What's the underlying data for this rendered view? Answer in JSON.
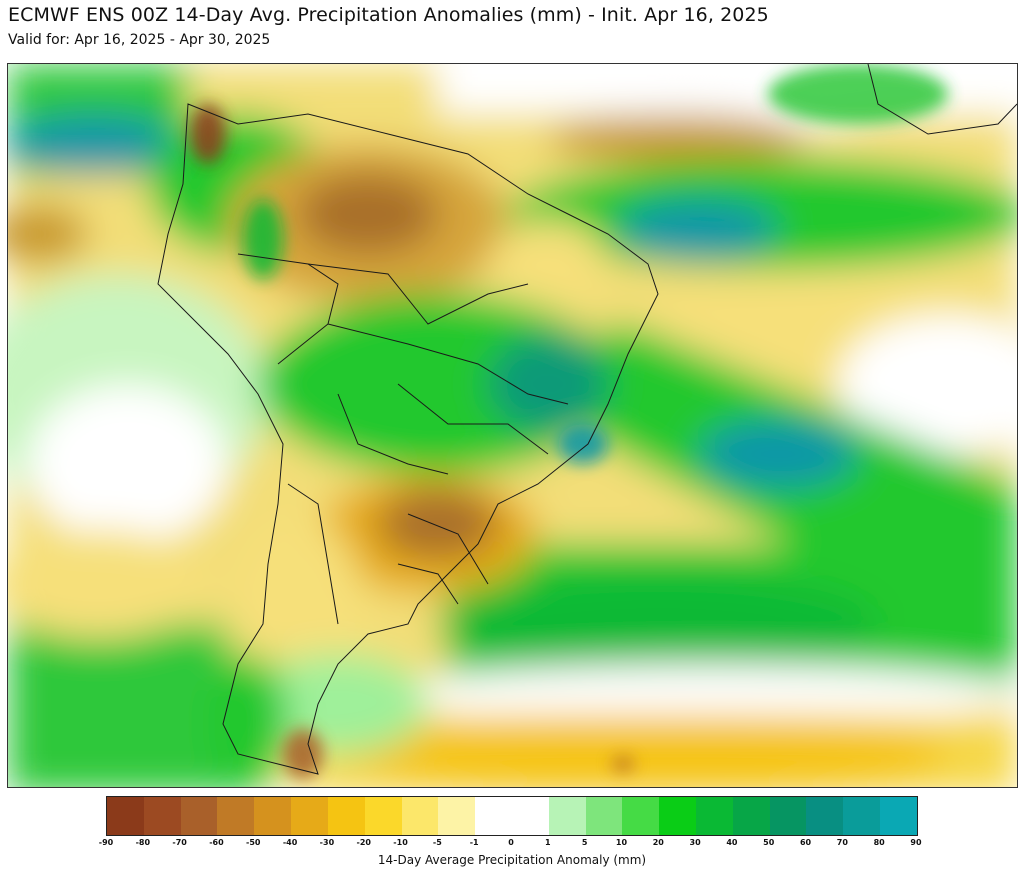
{
  "header": {
    "title": "ECMWF ENS 00Z 14-Day Avg. Precipitation Anomalies (mm) - Init. Apr 16, 2025",
    "subtitle": "Valid for: Apr 16, 2025 - Apr 30, 2025"
  },
  "legend": {
    "label": "14-Day Average Precipitation Anomaly (mm)",
    "ticks": [
      "-90",
      "-80",
      "-70",
      "-60",
      "-50",
      "-40",
      "-30",
      "-20",
      "-10",
      "-5",
      "-1",
      "0",
      "1",
      "5",
      "10",
      "20",
      "30",
      "40",
      "50",
      "60",
      "70",
      "80",
      "90"
    ],
    "colors": [
      "#8b3a1a",
      "#9c4a22",
      "#a9602a",
      "#c07a26",
      "#d5921e",
      "#e6aa18",
      "#f5c412",
      "#fbd82a",
      "#fce76a",
      "#fdf3a6",
      "#ffffff",
      "#ffffff",
      "#b7f3b6",
      "#7ee57c",
      "#45db45",
      "#0acd16",
      "#0ab934",
      "#07a647",
      "#069562",
      "#088f82",
      "#0a9c9a",
      "#0aa8b4"
    ]
  },
  "colors": {
    "dry_strong": "#8b5a1a",
    "dry_moderate": "#c99a2e",
    "dry_light": "#f6e07a",
    "neutral": "#ffffff",
    "wet_light": "#9ff09a",
    "wet_moderate": "#23c82e",
    "wet_strong": "#0a9a78",
    "wet_extreme": "#0a96a8",
    "border_line": "#1a1a1a"
  }
}
